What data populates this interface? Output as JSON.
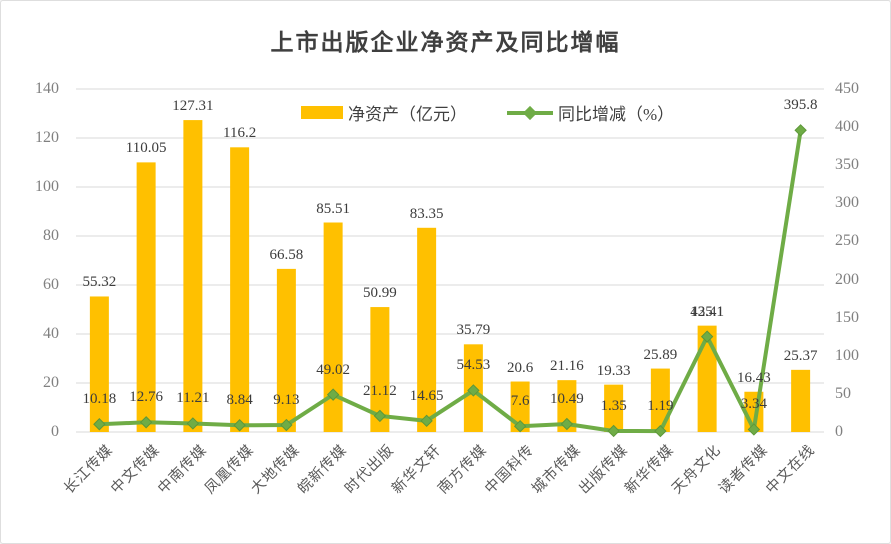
{
  "chart_data": {
    "type": "combo-bar-line",
    "title": "上市出版企业净资产及同比增幅",
    "categories": [
      "长江传媒",
      "中文传媒",
      "中南传媒",
      "凤凰传媒",
      "大地传媒",
      "皖新传媒",
      "时代出版",
      "新华文轩",
      "南方传媒",
      "中国科传",
      "城市传媒",
      "出版传媒",
      "新华传媒",
      "天舟文化",
      "读者传媒",
      "中文在线"
    ],
    "series": [
      {
        "name": "净资产（亿元）",
        "type": "bar",
        "axis": "left",
        "color": "#FFC000",
        "values": [
          55.32,
          110.05,
          127.31,
          116.2,
          66.58,
          85.51,
          50.99,
          83.35,
          35.79,
          20.6,
          21.16,
          19.33,
          25.89,
          43.41,
          16.43,
          25.37
        ],
        "labels": [
          "55.32",
          "110.05",
          "127.31",
          "116.2",
          "66.58",
          "85.51",
          "50.99",
          "83.35",
          "35.79",
          "20.6",
          "21.16",
          "19.33",
          "25.89",
          "43.41",
          "16.43",
          "25.37"
        ]
      },
      {
        "name": "同比增减（%）",
        "type": "line",
        "axis": "right",
        "color": "#6FAC46",
        "values": [
          10.18,
          12.76,
          11.21,
          8.84,
          9.13,
          49.02,
          21.12,
          14.65,
          54.53,
          7.6,
          10.49,
          1.35,
          1.19,
          125.1,
          3.34,
          395.8
        ],
        "labels": [
          "10.18",
          "12.76",
          "11.21",
          "8.84",
          "9.13",
          "49.02",
          "21.12",
          "14.65",
          "54.53",
          "7.6",
          "10.49",
          "1.35",
          "1.19",
          "125.1",
          "3.34",
          "395.8"
        ]
      }
    ],
    "left_axis": {
      "min": 0,
      "max": 140,
      "step": 20,
      "tick_labels": [
        "0",
        "20",
        "40",
        "60",
        "80",
        "100",
        "120",
        "140"
      ]
    },
    "right_axis": {
      "min": 0,
      "max": 450,
      "step": 50,
      "tick_labels": [
        "0",
        "50",
        "100",
        "150",
        "200",
        "250",
        "300",
        "350",
        "400",
        "450"
      ]
    },
    "grid": true,
    "legend_position": "top-center"
  },
  "colors": {
    "bar": "#FFC000",
    "line": "#6FAC46",
    "marker_stroke": "#5d9739",
    "grid": "#d9d9d9",
    "axis_text": "#808080",
    "label_text": "#3c3c3c",
    "title_text": "#3f3f3f",
    "border": "#dedede",
    "background": "#ffffff"
  }
}
